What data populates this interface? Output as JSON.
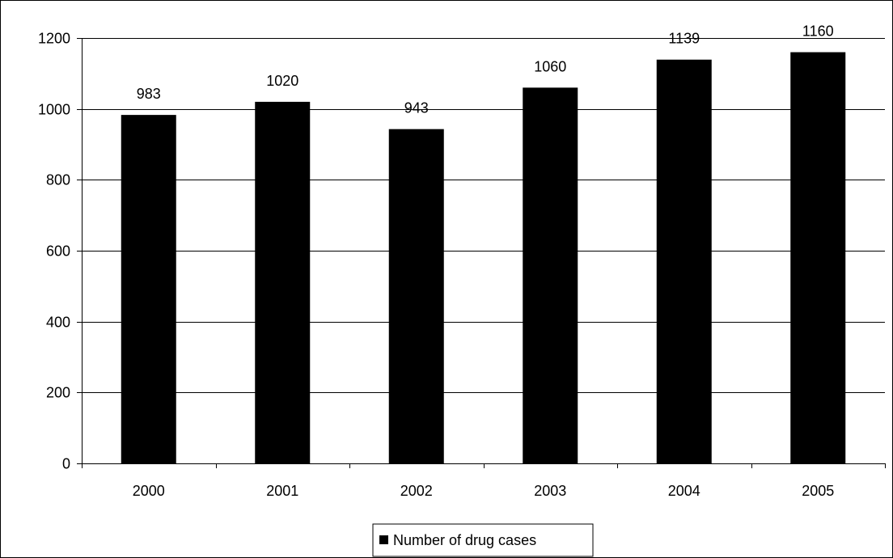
{
  "chart_data": {
    "type": "bar",
    "title": "",
    "xlabel": "",
    "ylabel": "",
    "categories": [
      "2000",
      "2001",
      "2002",
      "2003",
      "2004",
      "2005"
    ],
    "series": [
      {
        "name": "Number of drug cases",
        "values": [
          983,
          1020,
          943,
          1060,
          1139,
          1160
        ],
        "color": "#000000"
      }
    ],
    "ylim": [
      0,
      1200
    ],
    "yticks": [
      0,
      200,
      400,
      600,
      800,
      1000,
      1200
    ],
    "grid": true,
    "legend_position": "bottom",
    "data_labels": true
  }
}
